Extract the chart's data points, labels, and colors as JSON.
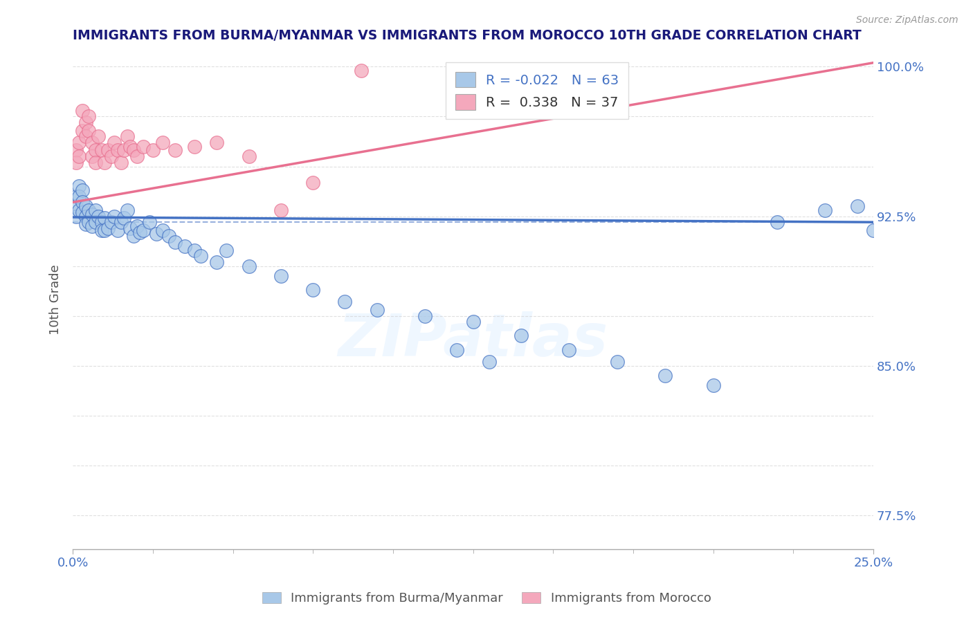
{
  "title": "IMMIGRANTS FROM BURMA/MYANMAR VS IMMIGRANTS FROM MOROCCO 10TH GRADE CORRELATION CHART",
  "source": "Source: ZipAtlas.com",
  "ylabel": "10th Grade",
  "xlim": [
    0.0,
    0.25
  ],
  "ylim": [
    0.758,
    1.008
  ],
  "blue_R": -0.022,
  "blue_N": 63,
  "pink_R": 0.338,
  "pink_N": 37,
  "blue_color": "#a8c8e8",
  "pink_color": "#f4a8bc",
  "blue_line_color": "#4472c4",
  "pink_line_color": "#e87090",
  "grid_color": "#cccccc",
  "title_color": "#1a1a7a",
  "legend_text_color": "#333333",
  "tick_color": "#4472c4",
  "blue_scatter_x": [
    0.001,
    0.001,
    0.001,
    0.002,
    0.002,
    0.002,
    0.003,
    0.003,
    0.003,
    0.004,
    0.004,
    0.004,
    0.005,
    0.005,
    0.006,
    0.006,
    0.007,
    0.007,
    0.008,
    0.009,
    0.009,
    0.01,
    0.01,
    0.011,
    0.012,
    0.013,
    0.014,
    0.015,
    0.016,
    0.017,
    0.018,
    0.019,
    0.02,
    0.021,
    0.022,
    0.024,
    0.026,
    0.028,
    0.03,
    0.032,
    0.035,
    0.038,
    0.04,
    0.045,
    0.048,
    0.055,
    0.065,
    0.075,
    0.085,
    0.095,
    0.11,
    0.125,
    0.14,
    0.155,
    0.17,
    0.185,
    0.2,
    0.12,
    0.13,
    0.22,
    0.235,
    0.245,
    0.25
  ],
  "blue_scatter_y": [
    0.935,
    0.93,
    0.925,
    0.94,
    0.935,
    0.928,
    0.938,
    0.932,
    0.927,
    0.93,
    0.925,
    0.921,
    0.928,
    0.922,
    0.926,
    0.92,
    0.928,
    0.922,
    0.925,
    0.922,
    0.918,
    0.924,
    0.918,
    0.919,
    0.922,
    0.925,
    0.918,
    0.922,
    0.924,
    0.928,
    0.919,
    0.915,
    0.92,
    0.917,
    0.918,
    0.922,
    0.916,
    0.918,
    0.915,
    0.912,
    0.91,
    0.908,
    0.905,
    0.902,
    0.908,
    0.9,
    0.895,
    0.888,
    0.882,
    0.878,
    0.875,
    0.872,
    0.865,
    0.858,
    0.852,
    0.845,
    0.84,
    0.858,
    0.852,
    0.922,
    0.928,
    0.93,
    0.918
  ],
  "pink_scatter_x": [
    0.001,
    0.001,
    0.002,
    0.002,
    0.003,
    0.003,
    0.004,
    0.004,
    0.005,
    0.005,
    0.006,
    0.006,
    0.007,
    0.007,
    0.008,
    0.009,
    0.01,
    0.011,
    0.012,
    0.013,
    0.014,
    0.015,
    0.016,
    0.017,
    0.018,
    0.019,
    0.02,
    0.022,
    0.025,
    0.028,
    0.032,
    0.038,
    0.045,
    0.055,
    0.065,
    0.075,
    0.09
  ],
  "pink_scatter_y": [
    0.958,
    0.952,
    0.962,
    0.955,
    0.968,
    0.978,
    0.972,
    0.965,
    0.975,
    0.968,
    0.962,
    0.955,
    0.958,
    0.952,
    0.965,
    0.958,
    0.952,
    0.958,
    0.955,
    0.962,
    0.958,
    0.952,
    0.958,
    0.965,
    0.96,
    0.958,
    0.955,
    0.96,
    0.958,
    0.962,
    0.958,
    0.96,
    0.962,
    0.955,
    0.928,
    0.942,
    0.998
  ],
  "blue_line_y_at_0": 0.9245,
  "blue_line_y_at_025": 0.922,
  "pink_line_y_at_0": 0.932,
  "pink_line_y_at_025": 1.002,
  "dashed_line_y": 0.922,
  "ytick_positions": [
    0.775,
    0.8,
    0.825,
    0.85,
    0.875,
    0.9,
    0.925,
    0.95,
    0.975,
    1.0
  ],
  "ytick_labels_right": {
    "0.85": "85.0%",
    "0.925": "92.5%",
    "1.0": "100.0%",
    "0.775": "77.5%"
  }
}
